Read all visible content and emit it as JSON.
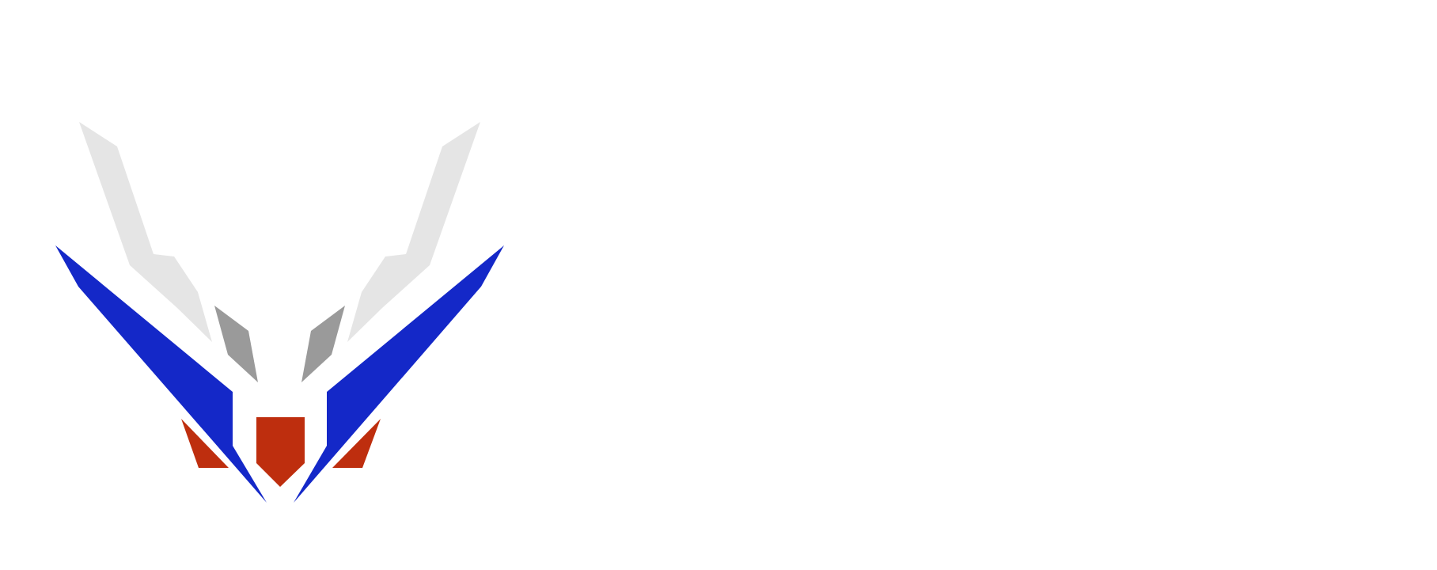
{
  "logo": {
    "name": "winged-shield-emblem",
    "colors": {
      "wing_light": "#e5e5e5",
      "wing_mid": "#9a9a9a",
      "wing_blue": "#1428c8",
      "shield_red": "#be2e0e",
      "background": "#ffffff"
    }
  }
}
